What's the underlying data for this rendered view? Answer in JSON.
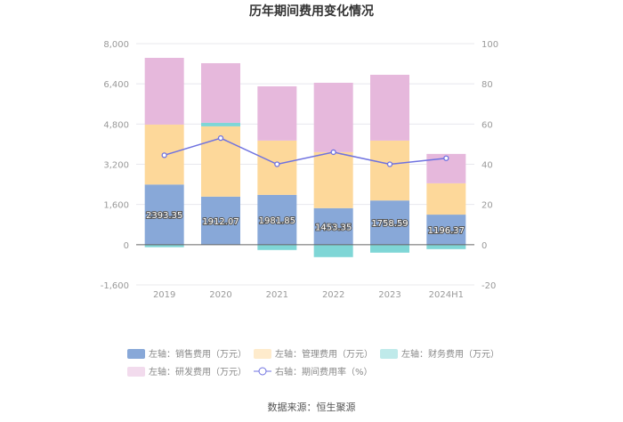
{
  "chart_data": {
    "type": "bar",
    "title": "历年期间费用变化情况",
    "categories": [
      "2019",
      "2020",
      "2021",
      "2022",
      "2023",
      "2024H1"
    ],
    "left_axis": {
      "ylim": [
        -1600,
        8000
      ],
      "ticks": [
        -1600,
        0,
        1600,
        3200,
        4800,
        6400,
        8000
      ],
      "tick_labels": [
        "-1,600",
        "0",
        "1,600",
        "3,200",
        "4,800",
        "6,400",
        "8,000"
      ]
    },
    "right_axis": {
      "ylim": [
        -20,
        100
      ],
      "ticks": [
        -20,
        0,
        20,
        40,
        60,
        80,
        100
      ]
    },
    "grid": true,
    "legend_position": "bottom",
    "series": [
      {
        "name": "左轴：销售费用（万元）",
        "type": "bar",
        "axis": "left",
        "color": "#88a8d8",
        "values": [
          2393.35,
          1912.07,
          1981.85,
          1453.35,
          1758.59,
          1196.37
        ],
        "labels": [
          "2393.35",
          "1912.07",
          "1981.85",
          "1453.35",
          "1758.59",
          "1196.37"
        ]
      },
      {
        "name": "左轴：管理费用（万元）",
        "type": "bar",
        "axis": "left",
        "color": "#fdd89a",
        "values": [
          2386,
          2796,
          2160,
          2228,
          2383,
          1246
        ]
      },
      {
        "name": "左轴：财务费用（万元）",
        "type": "bar",
        "axis": "left",
        "color": "#7fd6d6",
        "values": [
          -100,
          142,
          -212,
          -495,
          -318,
          -177
        ]
      },
      {
        "name": "左轴：研发费用（万元）",
        "type": "bar",
        "axis": "left",
        "color": "#e6b8dc",
        "values": [
          2655,
          2371,
          2159,
          2761,
          2619,
          1169
        ]
      },
      {
        "name": "右轴：期间费用率（%）",
        "type": "line",
        "axis": "right",
        "color": "#6f72e0",
        "values": [
          44.5,
          53,
          40,
          46,
          40,
          43
        ]
      }
    ],
    "source": "数据来源：恒生聚源"
  }
}
